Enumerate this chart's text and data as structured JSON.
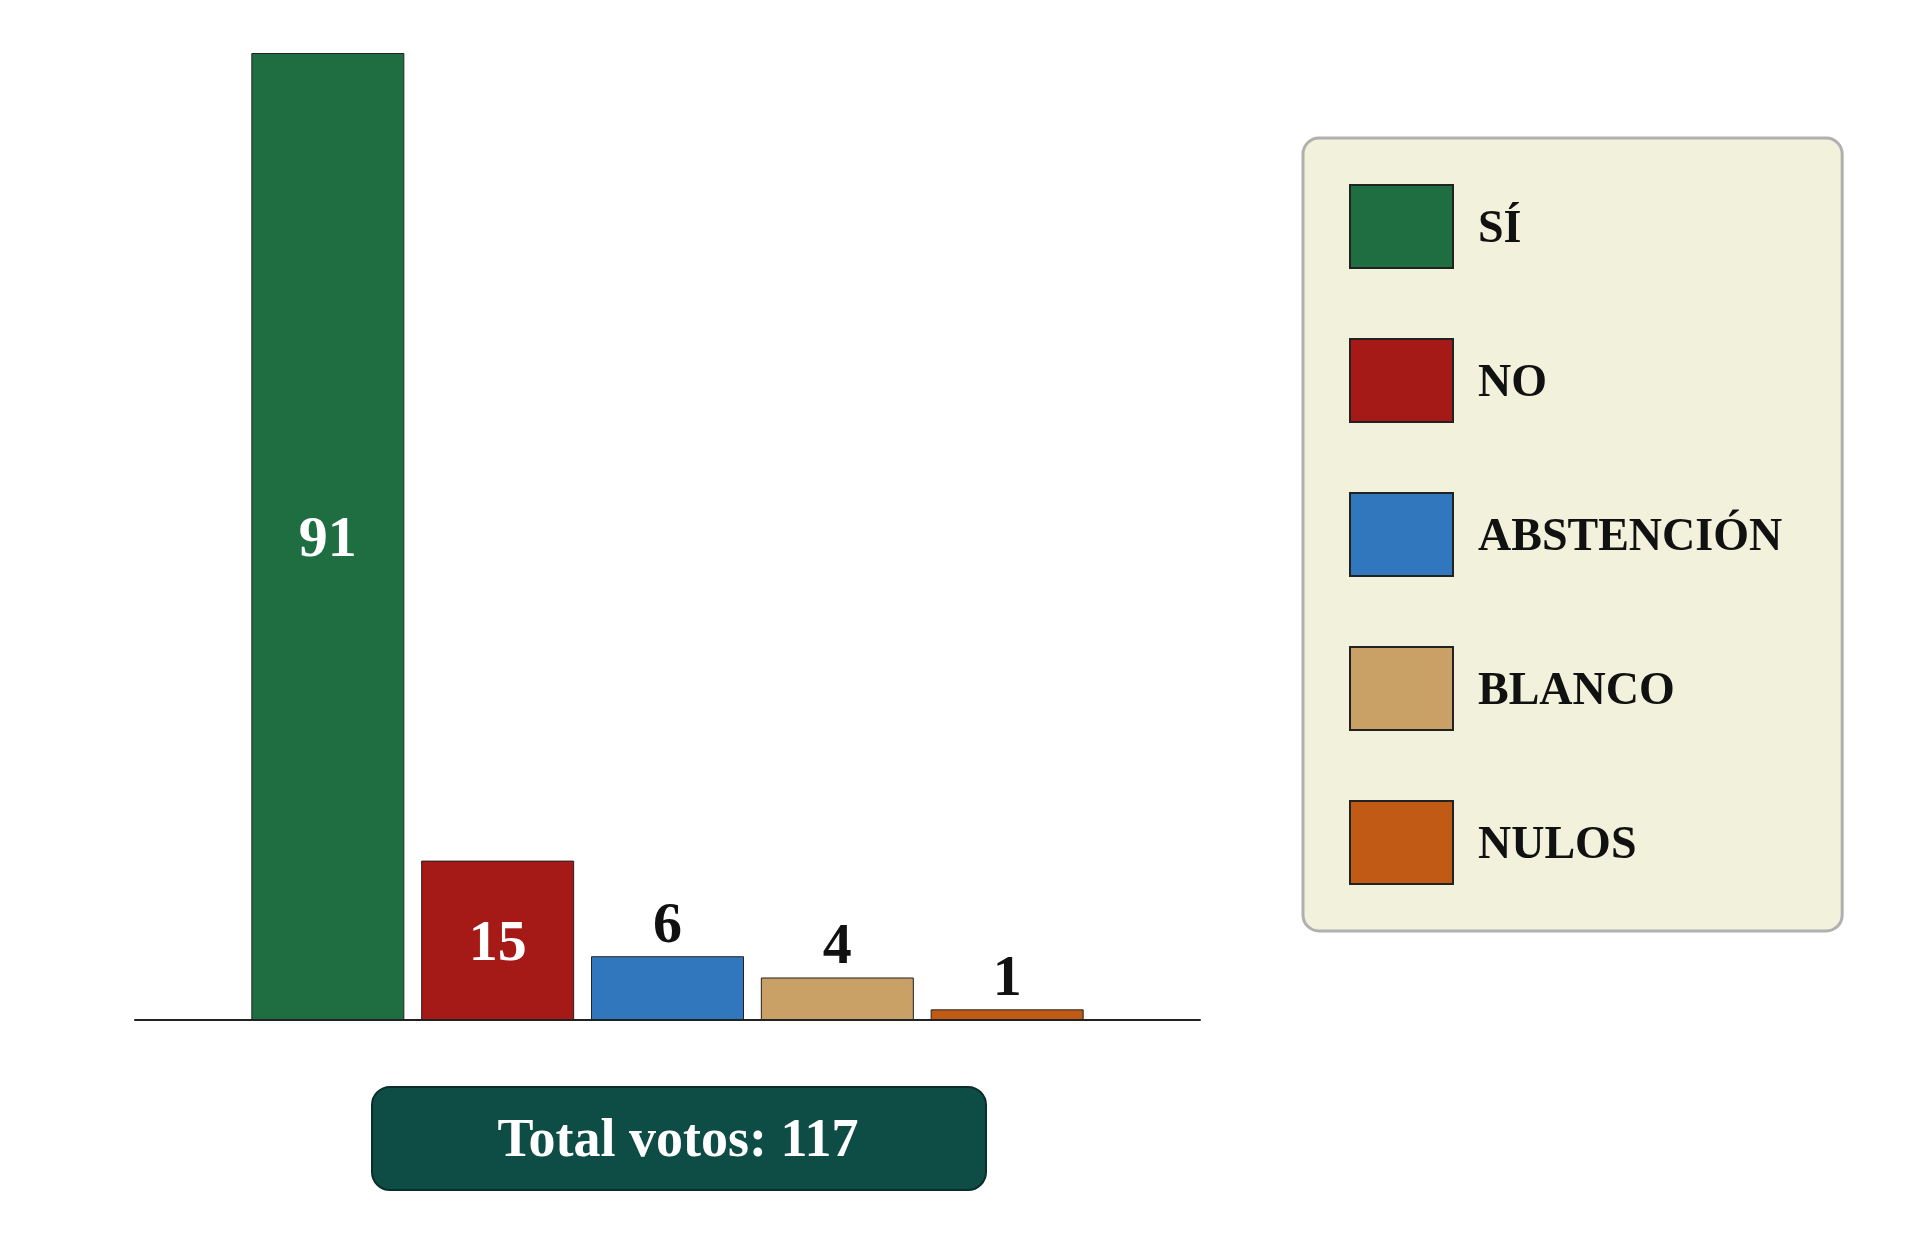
{
  "chart_data": {
    "type": "bar",
    "categories": [
      null
    ],
    "series": [
      {
        "name": "SÍ",
        "color": "#1e6e41",
        "values": [
          91
        ]
      },
      {
        "name": "NO",
        "color": "#a51916",
        "values": [
          15
        ]
      },
      {
        "name": "ABSTENCIÓN",
        "color": "#3077bd",
        "values": [
          6
        ]
      },
      {
        "name": "BLANCO",
        "color": "#c9a066",
        "values": [
          4
        ]
      },
      {
        "name": "NULOS",
        "color": "#c05a15",
        "values": [
          1
        ]
      }
    ],
    "data_labels": true,
    "legend": "right",
    "grid": false,
    "annotations": [
      "Total votos: 117"
    ]
  }
}
